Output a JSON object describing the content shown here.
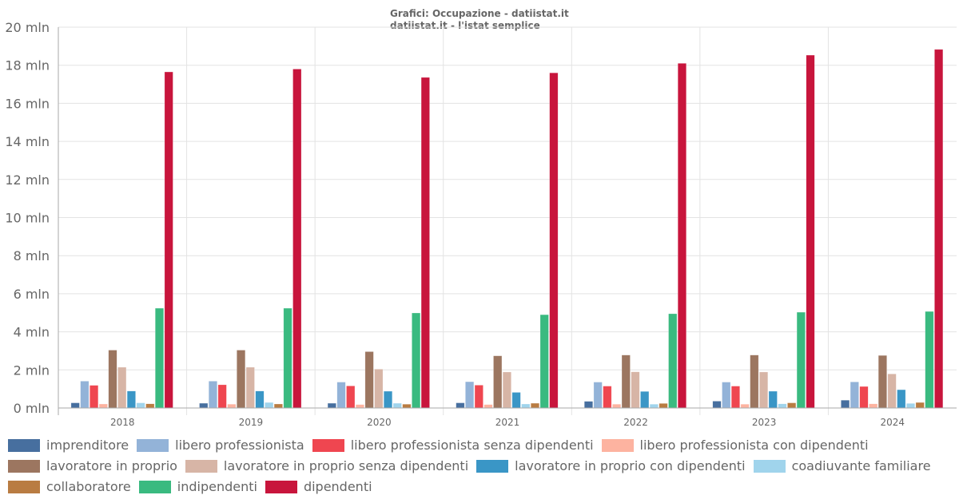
{
  "chart_data": {
    "type": "bar",
    "title": "Grafici: Occupazione - datiistat.it",
    "subtitle": "datiistat.it - l'istat semplice",
    "xlabel": "",
    "ylabel": "",
    "ylim": [
      0,
      20
    ],
    "yticks": [
      0,
      2,
      4,
      6,
      8,
      10,
      12,
      14,
      16,
      18,
      20
    ],
    "ytick_labels": [
      "0 mln",
      "2 mln",
      "4 mln",
      "6 mln",
      "8 mln",
      "10 mln",
      "12 mln",
      "14 mln",
      "16 mln",
      "18 mln",
      "20 mln"
    ],
    "grid": true,
    "legend_position": "bottom",
    "categories": [
      "2018",
      "2019",
      "2020",
      "2021",
      "2022",
      "2023",
      "2024"
    ],
    "series": [
      {
        "name": "imprenditore",
        "color": "#476f9f",
        "values": [
          0.27,
          0.25,
          0.25,
          0.27,
          0.35,
          0.36,
          0.41
        ]
      },
      {
        "name": "libero professionista",
        "color": "#93b3d8",
        "values": [
          1.41,
          1.41,
          1.36,
          1.38,
          1.36,
          1.36,
          1.37
        ]
      },
      {
        "name": "libero professionista senza dipendenti",
        "color": "#ef4650",
        "values": [
          1.19,
          1.22,
          1.16,
          1.2,
          1.15,
          1.15,
          1.13
        ]
      },
      {
        "name": "libero professionista con dipendenti",
        "color": "#fdb3a0",
        "values": [
          0.21,
          0.2,
          0.18,
          0.18,
          0.2,
          0.2,
          0.22
        ]
      },
      {
        "name": "lavoratore in proprio",
        "color": "#9c7660",
        "values": [
          3.04,
          3.04,
          2.96,
          2.74,
          2.78,
          2.78,
          2.76
        ]
      },
      {
        "name": "lavoratore in proprio senza dipendenti",
        "color": "#d7b5a6",
        "values": [
          2.14,
          2.14,
          2.04,
          1.89,
          1.9,
          1.89,
          1.79
        ]
      },
      {
        "name": "lavoratore in proprio con dipendenti",
        "color": "#3a96c6",
        "values": [
          0.89,
          0.89,
          0.88,
          0.82,
          0.87,
          0.88,
          0.96
        ]
      },
      {
        "name": "coadiuvante familiare",
        "color": "#a0d4ec",
        "values": [
          0.27,
          0.29,
          0.25,
          0.21,
          0.2,
          0.22,
          0.24
        ]
      },
      {
        "name": "collaboratore",
        "color": "#b97c42",
        "values": [
          0.22,
          0.21,
          0.2,
          0.25,
          0.24,
          0.27,
          0.29
        ]
      },
      {
        "name": "indipendenti",
        "color": "#3aba80",
        "values": [
          5.24,
          5.24,
          4.99,
          4.9,
          4.95,
          5.03,
          5.07
        ]
      },
      {
        "name": "dipendenti",
        "color": "#c8153c",
        "values": [
          17.65,
          17.8,
          17.36,
          17.6,
          18.1,
          18.53,
          18.83
        ]
      }
    ]
  }
}
